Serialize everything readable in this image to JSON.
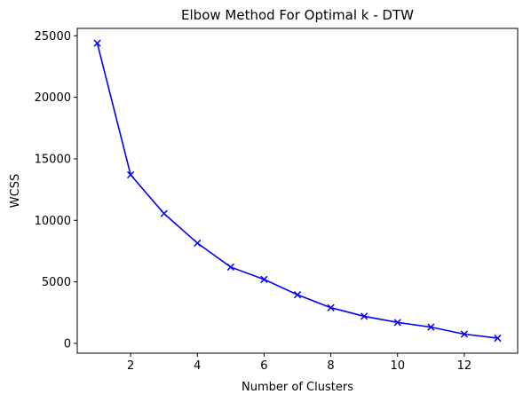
{
  "chart_data": {
    "type": "line",
    "title": "Elbow Method For Optimal k - DTW",
    "xlabel": "Number of Clusters",
    "ylabel": "WCSS",
    "x": [
      1,
      2,
      3,
      4,
      5,
      6,
      7,
      8,
      9,
      10,
      11,
      12,
      13
    ],
    "series": [
      {
        "values": [
          24400,
          13700,
          10550,
          8150,
          6200,
          5200,
          3950,
          2900,
          2200,
          1700,
          1320,
          750,
          420
        ],
        "color": "#0000ff",
        "marker": "x"
      }
    ],
    "xlim": [
      0.4,
      13.6
    ],
    "ylim": [
      -800,
      25600
    ],
    "xticks": [
      2,
      4,
      6,
      8,
      10,
      12
    ],
    "yticks": [
      0,
      5000,
      10000,
      15000,
      20000,
      25000
    ],
    "grid": false,
    "legend": "none"
  }
}
